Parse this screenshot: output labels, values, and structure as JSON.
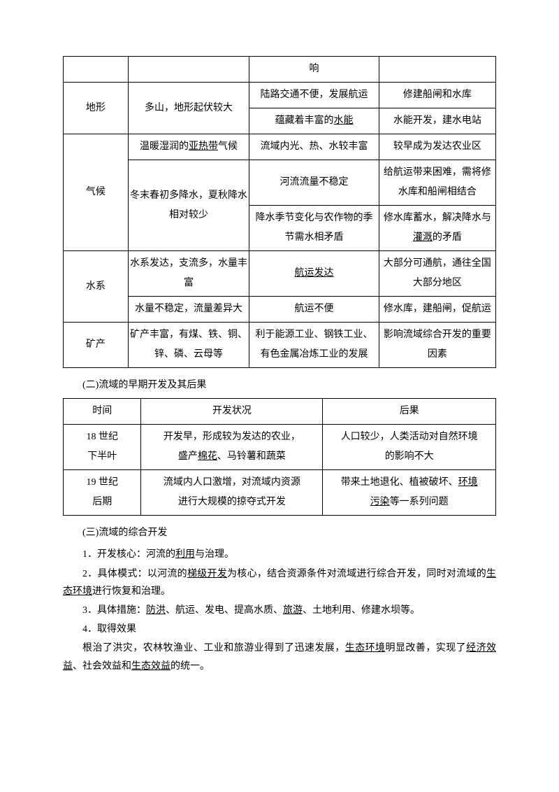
{
  "table1": {
    "r0c3": "响",
    "terrain": {
      "label": "地形",
      "feat": "多山，地形起伏较大",
      "imp1": "陆路交通不便，发展航运",
      "res1": "修建船闸和水库",
      "imp2_a": "蕴藏着丰富的",
      "imp2_b": "水能",
      "res2": "水能开发，建水电站"
    },
    "climate": {
      "label": "气候",
      "feat1_a": "温暖湿润的",
      "feat1_b": "亚热带",
      "feat1_c": "气候",
      "imp1": "流域内光、热、水较丰富",
      "res1": "较早成为发达农业区",
      "feat2": "冬末春初多降水，夏秋降水相对较少",
      "imp2": "河流流量不稳定",
      "res2": "给航运带来困难，需将修水库和船闸相结合",
      "imp3": "降水季节变化与农作物的季节需水相矛盾",
      "res3_a": "修水库蓄水，解决降水与",
      "res3_b": "灌溉",
      "res3_c": "的矛盾"
    },
    "water": {
      "label": "水系",
      "feat1": "水系发达，支流多，水量丰富",
      "imp1": "航运发达",
      "res1": "大部分可通航，通往全国大部分地区",
      "feat2": "水量不稳定，流量差异大",
      "imp2": "航运不便",
      "res2": "修水库，建船闸，促航运"
    },
    "mineral": {
      "label": "矿产",
      "feat": "矿产丰富，有煤、铁、铜、锌、磷、云母等",
      "imp": "利于能源工业、钢铁工业、有色金属冶炼工业的发展",
      "res": "影响流域综合开发的重要因素"
    }
  },
  "section2": {
    "title": "(二)流域的早期开发及其后果",
    "header": {
      "c1": "时间",
      "c2": "开发状况",
      "c3": "后果"
    },
    "row1": {
      "c1a": "18 世纪",
      "c1b": "下半叶",
      "c2a": "开发早，形成较为发达的农业，",
      "c2b1": "盛产",
      "c2b2": "棉花",
      "c2b3": "、马铃薯和蔬菜",
      "c3a": "人口较少，人类活动对自然环境",
      "c3b": "的影响不大"
    },
    "row2": {
      "c1a": "19 世纪",
      "c1b": "后期",
      "c2a": "流域内人口激增，对流域内资源",
      "c2b": "进行大规模的掠夺式开发",
      "c3a1": "带来土地退化、植被破坏、",
      "c3a2": "环境",
      "c3b1": "污染",
      "c3b2": "等一系列问题"
    }
  },
  "section3": {
    "title": "(三)流域的综合开发",
    "p1_a": "1．开发核心：河流的",
    "p1_b": "利用",
    "p1_c": "与治理。",
    "p2_a": "2．具体模式：以河流的",
    "p2_b": "梯级开发",
    "p2_c": "为核心，结合资源条件对流域进行综合开发，同时对流域的",
    "p2_d": "生态环境",
    "p2_e": "进行恢复和治理。",
    "p3_a": "3．具体措施：",
    "p3_b": "防洪",
    "p3_c": "、航运、发电、提高水质、",
    "p3_d": "旅游",
    "p3_e": "、土地利用、修建水坝等。",
    "p4": "4．取得效果",
    "p5_a": "根治了洪灾，农林牧渔业、工业和旅游业得到了迅速发展，",
    "p5_b": "生态环境",
    "p5_c": "明显改善，实现了",
    "p5_d": "经济效益",
    "p5_e": "、社会效益和",
    "p5_f": "生态效益",
    "p5_g": "的统一。"
  }
}
